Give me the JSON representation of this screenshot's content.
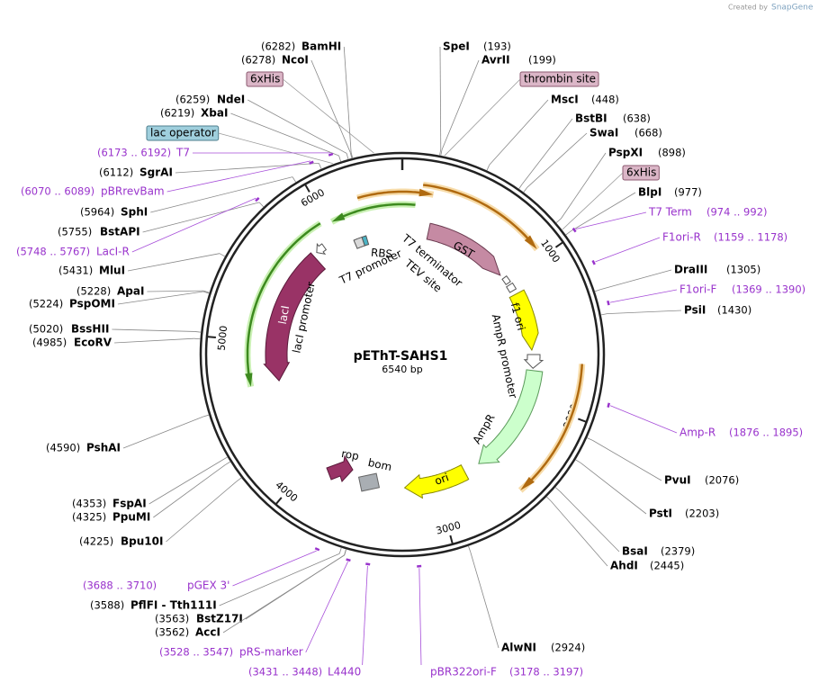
{
  "credit": {
    "prefix": "Created by",
    "brand": "SnapGene"
  },
  "map": {
    "name": "pEThT-SAHS1",
    "length": "6540 bp",
    "total_bp": 6540
  },
  "ruler": [
    "1000",
    "2000",
    "3000",
    "4000",
    "5000",
    "6000"
  ],
  "sites": [
    {
      "kind": "enzyme",
      "name": "BamHI",
      "position": "(6282)"
    },
    {
      "kind": "enzyme",
      "name": "NcoI",
      "position": "(6278)"
    },
    {
      "kind": "enzyme",
      "name": "NdeI",
      "position": "(6259)"
    },
    {
      "kind": "enzyme",
      "name": "XbaI",
      "position": "(6219)"
    },
    {
      "kind": "primer",
      "name": "T7",
      "position": "(6173 .. 6192)"
    },
    {
      "kind": "enzyme",
      "name": "SgrAI",
      "position": "(6112)"
    },
    {
      "kind": "primer",
      "name": "pBRrevBam",
      "position": "(6070 .. 6089)"
    },
    {
      "kind": "enzyme",
      "name": "SphI",
      "position": "(5964)"
    },
    {
      "kind": "enzyme",
      "name": "BstAPI",
      "position": "(5755)"
    },
    {
      "kind": "primer",
      "name": "LacI-R",
      "position": "(5748 .. 5767)"
    },
    {
      "kind": "enzyme",
      "name": "MluI",
      "position": "(5431)"
    },
    {
      "kind": "enzyme",
      "name": "ApaI",
      "position": "(5228)"
    },
    {
      "kind": "enzyme",
      "name": "PspOMI",
      "position": "(5224)"
    },
    {
      "kind": "enzyme",
      "name": "BssHII",
      "position": "(5020)"
    },
    {
      "kind": "enzyme",
      "name": "EcoRV",
      "position": "(4985)"
    },
    {
      "kind": "enzyme",
      "name": "PshAI",
      "position": "(4590)"
    },
    {
      "kind": "enzyme",
      "name": "FspAI",
      "position": "(4353)"
    },
    {
      "kind": "enzyme",
      "name": "PpuMI",
      "position": "(4325)"
    },
    {
      "kind": "enzyme",
      "name": "Bpu10I",
      "position": "(4225)"
    },
    {
      "kind": "primer",
      "name": "pGEX 3'",
      "position": "(3688 .. 3710)"
    },
    {
      "kind": "enzyme",
      "name": "PflFI - Tth111I",
      "position": "(3588)"
    },
    {
      "kind": "enzyme",
      "name": "BstZ17I",
      "position": "(3563)"
    },
    {
      "kind": "enzyme",
      "name": "AccI",
      "position": "(3562)"
    },
    {
      "kind": "primer",
      "name": "pRS-marker",
      "position": "(3528 .. 3547)"
    },
    {
      "kind": "primer",
      "name": "L4440",
      "position": "(3431 .. 3448)"
    },
    {
      "kind": "enzyme",
      "name": "SpeI",
      "position": "(193)"
    },
    {
      "kind": "enzyme",
      "name": "AvrII",
      "position": "(199)"
    },
    {
      "kind": "enzyme",
      "name": "MscI",
      "position": "(448)"
    },
    {
      "kind": "enzyme",
      "name": "BstBI",
      "position": "(638)"
    },
    {
      "kind": "enzyme",
      "name": "SwaI",
      "position": "(668)"
    },
    {
      "kind": "enzyme",
      "name": "PspXI",
      "position": "(898)"
    },
    {
      "kind": "enzyme",
      "name": "BlpI",
      "position": "(977)"
    },
    {
      "kind": "primer",
      "name": "T7 Term",
      "position": "(974 .. 992)"
    },
    {
      "kind": "primer",
      "name": "F1ori-R",
      "position": "(1159 .. 1178)"
    },
    {
      "kind": "enzyme",
      "name": "DraIII",
      "position": "(1305)"
    },
    {
      "kind": "primer",
      "name": "F1ori-F",
      "position": "(1369 .. 1390)"
    },
    {
      "kind": "enzyme",
      "name": "PsiI",
      "position": "(1430)"
    },
    {
      "kind": "primer",
      "name": "Amp-R",
      "position": "(1876 .. 1895)"
    },
    {
      "kind": "enzyme",
      "name": "PvuI",
      "position": "(2076)"
    },
    {
      "kind": "enzyme",
      "name": "PstI",
      "position": "(2203)"
    },
    {
      "kind": "enzyme",
      "name": "BsaI",
      "position": "(2379)"
    },
    {
      "kind": "enzyme",
      "name": "AhdI",
      "position": "(2445)"
    },
    {
      "kind": "enzyme",
      "name": "AlwNI",
      "position": "(2924)"
    },
    {
      "kind": "primer",
      "name": "pBR322ori-F",
      "position": "(3178 .. 3197)"
    }
  ],
  "tags": [
    {
      "label": "6xHis"
    },
    {
      "label": "thrombin site"
    },
    {
      "label": "lac operator"
    },
    {
      "label": "6xHis"
    }
  ],
  "features": [
    {
      "label": "GST"
    },
    {
      "label": "T7 terminator"
    },
    {
      "label": "TEV site"
    },
    {
      "label": "f1 ori"
    },
    {
      "label": "AmpR promoter"
    },
    {
      "label": "AmpR"
    },
    {
      "label": "ori"
    },
    {
      "label": "bom"
    },
    {
      "label": "rop"
    },
    {
      "label": "lacI"
    },
    {
      "label": "lacI promoter"
    },
    {
      "label": "T7 promoter"
    },
    {
      "label": "RBS"
    }
  ]
}
